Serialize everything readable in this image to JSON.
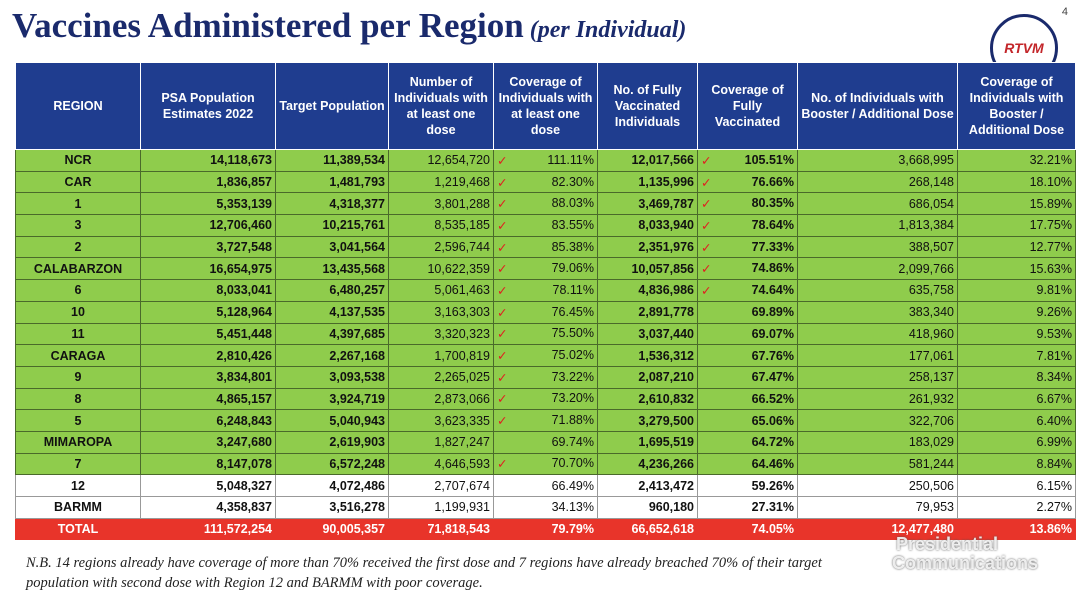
{
  "header": {
    "title": "Vaccines Administered per Region",
    "subtitle": "(per Individual)",
    "page_number": "4",
    "logo_text": "RTVM"
  },
  "table": {
    "columns": [
      "REGION",
      "PSA Population Estimates 2022",
      "Target Population",
      "Number of Individuals with at least one dose",
      "Coverage of Individuals with at least one dose",
      "No. of Fully Vaccinated Individuals",
      "Coverage of Fully Vaccinated",
      "No. of Individuals with Booster / Additional Dose",
      "Coverage of Individuals with Booster / Additional Dose"
    ],
    "rows": [
      [
        "NCR",
        "14,118,673",
        "11,389,534",
        "12,654,720",
        "111.11%",
        "12,017,566",
        "105.51%",
        "3,668,995",
        "32.21%"
      ],
      [
        "CAR",
        "1,836,857",
        "1,481,793",
        "1,219,468",
        "82.30%",
        "1,135,996",
        "76.66%",
        "268,148",
        "18.10%"
      ],
      [
        "1",
        "5,353,139",
        "4,318,377",
        "3,801,288",
        "88.03%",
        "3,469,787",
        "80.35%",
        "686,054",
        "15.89%"
      ],
      [
        "3",
        "12,706,460",
        "10,215,761",
        "8,535,185",
        "83.55%",
        "8,033,940",
        "78.64%",
        "1,813,384",
        "17.75%"
      ],
      [
        "2",
        "3,727,548",
        "3,041,564",
        "2,596,744",
        "85.38%",
        "2,351,976",
        "77.33%",
        "388,507",
        "12.77%"
      ],
      [
        "CALABARZON",
        "16,654,975",
        "13,435,568",
        "10,622,359",
        "79.06%",
        "10,057,856",
        "74.86%",
        "2,099,766",
        "15.63%"
      ],
      [
        "6",
        "8,033,041",
        "6,480,257",
        "5,061,463",
        "78.11%",
        "4,836,986",
        "74.64%",
        "635,758",
        "9.81%"
      ],
      [
        "10",
        "5,128,964",
        "4,137,535",
        "3,163,303",
        "76.45%",
        "2,891,778",
        "69.89%",
        "383,340",
        "9.26%"
      ],
      [
        "11",
        "5,451,448",
        "4,397,685",
        "3,320,323",
        "75.50%",
        "3,037,440",
        "69.07%",
        "418,960",
        "9.53%"
      ],
      [
        "CARAGA",
        "2,810,426",
        "2,267,168",
        "1,700,819",
        "75.02%",
        "1,536,312",
        "67.76%",
        "177,061",
        "7.81%"
      ],
      [
        "9",
        "3,834,801",
        "3,093,538",
        "2,265,025",
        "73.22%",
        "2,087,210",
        "67.47%",
        "258,137",
        "8.34%"
      ],
      [
        "8",
        "4,865,157",
        "3,924,719",
        "2,873,066",
        "73.20%",
        "2,610,832",
        "66.52%",
        "261,932",
        "6.67%"
      ],
      [
        "5",
        "6,248,843",
        "5,040,943",
        "3,623,335",
        "71.88%",
        "3,279,500",
        "65.06%",
        "322,706",
        "6.40%"
      ],
      [
        "MIMAROPA",
        "3,247,680",
        "2,619,903",
        "1,827,247",
        "69.74%",
        "1,695,519",
        "64.72%",
        "183,029",
        "6.99%"
      ],
      [
        "7",
        "8,147,078",
        "6,572,248",
        "4,646,593",
        "70.70%",
        "4,236,266",
        "64.46%",
        "581,244",
        "8.84%"
      ],
      [
        "12",
        "5,048,327",
        "4,072,486",
        "2,707,674",
        "66.49%",
        "2,413,472",
        "59.26%",
        "250,506",
        "6.15%"
      ],
      [
        "BARMM",
        "4,358,837",
        "3,516,278",
        "1,199,931",
        "34.13%",
        "960,180",
        "27.31%",
        "79,953",
        "2.27%"
      ]
    ],
    "total": [
      "TOTAL",
      "111,572,254",
      "90,005,357",
      "71,818,543",
      "79.79%",
      "66,652,618",
      "74.05%",
      "12,477,480",
      "13.86%"
    ],
    "highlighted": [
      true,
      true,
      true,
      true,
      true,
      true,
      true,
      true,
      true,
      true,
      true,
      true,
      true,
      true,
      true,
      false,
      false
    ],
    "check_first_dose": [
      true,
      true,
      true,
      true,
      true,
      true,
      true,
      true,
      true,
      true,
      true,
      true,
      true,
      false,
      true,
      false,
      false
    ],
    "check_fully": [
      true,
      true,
      true,
      true,
      true,
      true,
      true,
      false,
      false,
      false,
      false,
      false,
      false,
      false,
      false,
      false,
      false
    ]
  },
  "footnote": [
    "N.B. 14 regions already have coverage of more than 70% received the first dose and 7 regions have already breached 70% of their target",
    "population with second dose with Region 12 and BARMM with poor coverage."
  ],
  "watermark": [
    "Presidential",
    "Communications"
  ]
}
